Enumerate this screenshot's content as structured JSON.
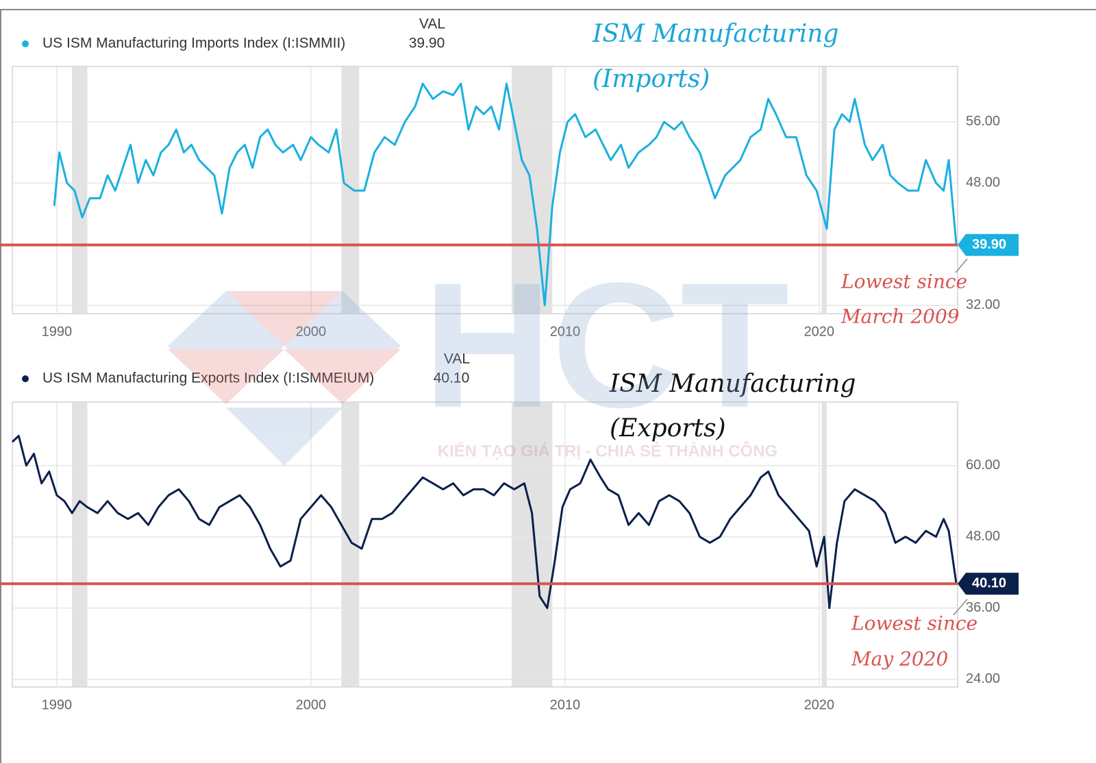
{
  "chart_data": [
    {
      "type": "line",
      "val_header": "VAL",
      "current": {
        "value": 39.9,
        "label": "39.90"
      },
      "xlim": [
        1988.25,
        2025.45
      ],
      "xticks": [
        1990,
        2000,
        2010,
        2020
      ],
      "ylim": [
        30.9,
        63.25
      ],
      "yticks": [
        {
          "value": 32,
          "label": "32.00"
        },
        {
          "value": 48,
          "label": "48.00"
        },
        {
          "value": 56,
          "label": "56.00"
        }
      ],
      "grid": true,
      "recessions": [
        [
          1990.6,
          1991.2
        ],
        [
          2001.2,
          2001.9
        ],
        [
          2007.9,
          2009.5
        ],
        [
          2020.1,
          2020.3
        ]
      ],
      "annotations": [
        "ISM Manufacturing",
        "(Imports)",
        "Lowest since",
        "March 2009"
      ],
      "x": [
        1989.9,
        1990.1,
        1990.4,
        1990.7,
        1991.0,
        1991.3,
        1991.7,
        1992.0,
        1992.3,
        1992.6,
        1992.9,
        1993.2,
        1993.5,
        1993.8,
        1994.1,
        1994.4,
        1994.7,
        1995.0,
        1995.3,
        1995.6,
        1995.9,
        1996.2,
        1996.5,
        1996.8,
        1997.1,
        1997.4,
        1997.7,
        1998.0,
        1998.3,
        1998.6,
        1998.9,
        1999.3,
        1999.6,
        2000.0,
        2000.3,
        2000.7,
        2001.0,
        2001.3,
        2001.7,
        2002.1,
        2002.5,
        2002.9,
        2003.3,
        2003.7,
        2004.1,
        2004.4,
        2004.8,
        2005.2,
        2005.6,
        2005.9,
        2006.2,
        2006.5,
        2006.8,
        2007.1,
        2007.4,
        2007.7,
        2008.0,
        2008.3,
        2008.6,
        2008.9,
        2009.2,
        2009.5,
        2009.8,
        2010.1,
        2010.4,
        2010.8,
        2011.2,
        2011.5,
        2011.8,
        2012.2,
        2012.5,
        2012.9,
        2013.3,
        2013.6,
        2013.9,
        2014.3,
        2014.6,
        2014.9,
        2015.3,
        2015.6,
        2015.9,
        2016.3,
        2016.6,
        2016.9,
        2017.3,
        2017.7,
        2018.0,
        2018.3,
        2018.7,
        2019.1,
        2019.5,
        2019.9,
        2020.3,
        2020.6,
        2020.9,
        2021.2,
        2021.4,
        2021.8,
        2022.1,
        2022.5,
        2022.8,
        2023.1,
        2023.5,
        2023.9,
        2024.2,
        2024.6,
        2024.9,
        2025.1,
        2025.4
      ],
      "series": [
        {
          "name": "US ISM Manufacturing Imports Index (I:ISMMII)",
          "color": "#1ab0e0",
          "values": [
            45,
            52,
            48,
            47,
            43.5,
            46,
            46,
            49,
            47,
            50,
            53,
            48,
            51,
            49,
            52,
            53,
            55,
            52,
            53,
            51,
            50,
            49,
            44,
            50,
            52,
            53,
            50,
            54,
            55,
            53,
            52,
            53,
            51,
            54,
            53,
            52,
            55,
            48,
            47,
            47,
            52,
            54,
            53,
            56,
            58,
            61,
            59,
            60,
            59.5,
            61,
            55,
            58,
            57,
            58,
            55,
            61,
            56,
            51,
            49,
            42,
            32,
            45,
            52,
            56,
            57,
            54,
            55,
            53,
            51,
            53,
            50,
            52,
            53,
            54,
            56,
            55,
            56,
            54,
            52,
            49,
            46,
            49,
            50,
            51,
            54,
            55,
            59,
            57,
            54,
            54,
            49,
            47,
            42,
            55,
            57,
            56,
            59,
            53,
            51,
            53,
            49,
            48,
            47,
            47,
            51,
            48,
            47,
            51,
            39.9
          ]
        }
      ]
    },
    {
      "type": "line",
      "val_header": "VAL",
      "current": {
        "value": 40.1,
        "label": "40.10"
      },
      "xlim": [
        1988.25,
        2025.45
      ],
      "xticks": [
        1990,
        2000,
        2010,
        2020
      ],
      "ylim": [
        22.7,
        70.7
      ],
      "yticks": [
        {
          "value": 24,
          "label": "24.00"
        },
        {
          "value": 36,
          "label": "36.00"
        },
        {
          "value": 48,
          "label": "48.00"
        },
        {
          "value": 60,
          "label": "60.00"
        }
      ],
      "grid": true,
      "recessions": [
        [
          1990.6,
          1991.2
        ],
        [
          2001.2,
          2001.9
        ],
        [
          2007.9,
          2009.5
        ],
        [
          2020.1,
          2020.3
        ]
      ],
      "annotations": [
        "ISM Manufacturing",
        "(Exports)",
        "Lowest since",
        "May 2020"
      ],
      "x": [
        1988.25,
        1988.5,
        1988.8,
        1989.1,
        1989.4,
        1989.7,
        1990.0,
        1990.3,
        1990.6,
        1990.9,
        1991.2,
        1991.6,
        1992.0,
        1992.4,
        1992.8,
        1993.2,
        1993.6,
        1994.0,
        1994.4,
        1994.8,
        1995.2,
        1995.6,
        1996.0,
        1996.4,
        1996.8,
        1997.2,
        1997.6,
        1998.0,
        1998.4,
        1998.8,
        1999.2,
        1999.6,
        2000.0,
        2000.4,
        2000.8,
        2001.2,
        2001.6,
        2002.0,
        2002.4,
        2002.8,
        2003.2,
        2003.6,
        2004.0,
        2004.4,
        2004.8,
        2005.2,
        2005.6,
        2006.0,
        2006.4,
        2006.8,
        2007.2,
        2007.6,
        2008.0,
        2008.4,
        2008.7,
        2009.0,
        2009.3,
        2009.6,
        2009.9,
        2010.2,
        2010.6,
        2011.0,
        2011.4,
        2011.7,
        2012.1,
        2012.5,
        2012.9,
        2013.3,
        2013.7,
        2014.1,
        2014.5,
        2014.9,
        2015.3,
        2015.7,
        2016.1,
        2016.5,
        2016.9,
        2017.3,
        2017.7,
        2018.0,
        2018.4,
        2018.8,
        2019.2,
        2019.6,
        2019.9,
        2020.2,
        2020.4,
        2020.7,
        2021.0,
        2021.4,
        2021.8,
        2022.2,
        2022.6,
        2023.0,
        2023.4,
        2023.8,
        2024.2,
        2024.6,
        2024.9,
        2025.1,
        2025.4
      ],
      "series": [
        {
          "name": "US ISM Manufacturing Exports Index (I:ISMMEIUM)",
          "color": "#0b1f4b",
          "values": [
            64,
            65,
            60,
            62,
            57,
            59,
            55,
            54,
            52,
            54,
            53,
            52,
            54,
            52,
            51,
            52,
            50,
            53,
            55,
            56,
            54,
            51,
            50,
            53,
            54,
            55,
            53,
            50,
            46,
            43,
            44,
            51,
            53,
            55,
            53,
            50,
            47,
            46,
            51,
            51,
            52,
            54,
            56,
            58,
            57,
            56,
            57,
            55,
            56,
            56,
            55,
            57,
            56,
            57,
            52,
            38,
            36,
            44,
            53,
            56,
            57,
            61,
            58,
            56,
            55,
            50,
            52,
            50,
            54,
            55,
            54,
            52,
            48,
            47,
            48,
            51,
            53,
            55,
            58,
            59,
            55,
            53,
            51,
            49,
            43,
            48,
            36,
            47,
            54,
            56,
            55,
            54,
            52,
            47,
            48,
            47,
            49,
            48,
            51,
            49,
            40.1
          ]
        }
      ]
    }
  ],
  "watermark": {
    "text": "HCT",
    "slogan": "KIẾN TẠO GIÁ TRỊ - CHIA SẺ THÀNH CÔNG"
  }
}
